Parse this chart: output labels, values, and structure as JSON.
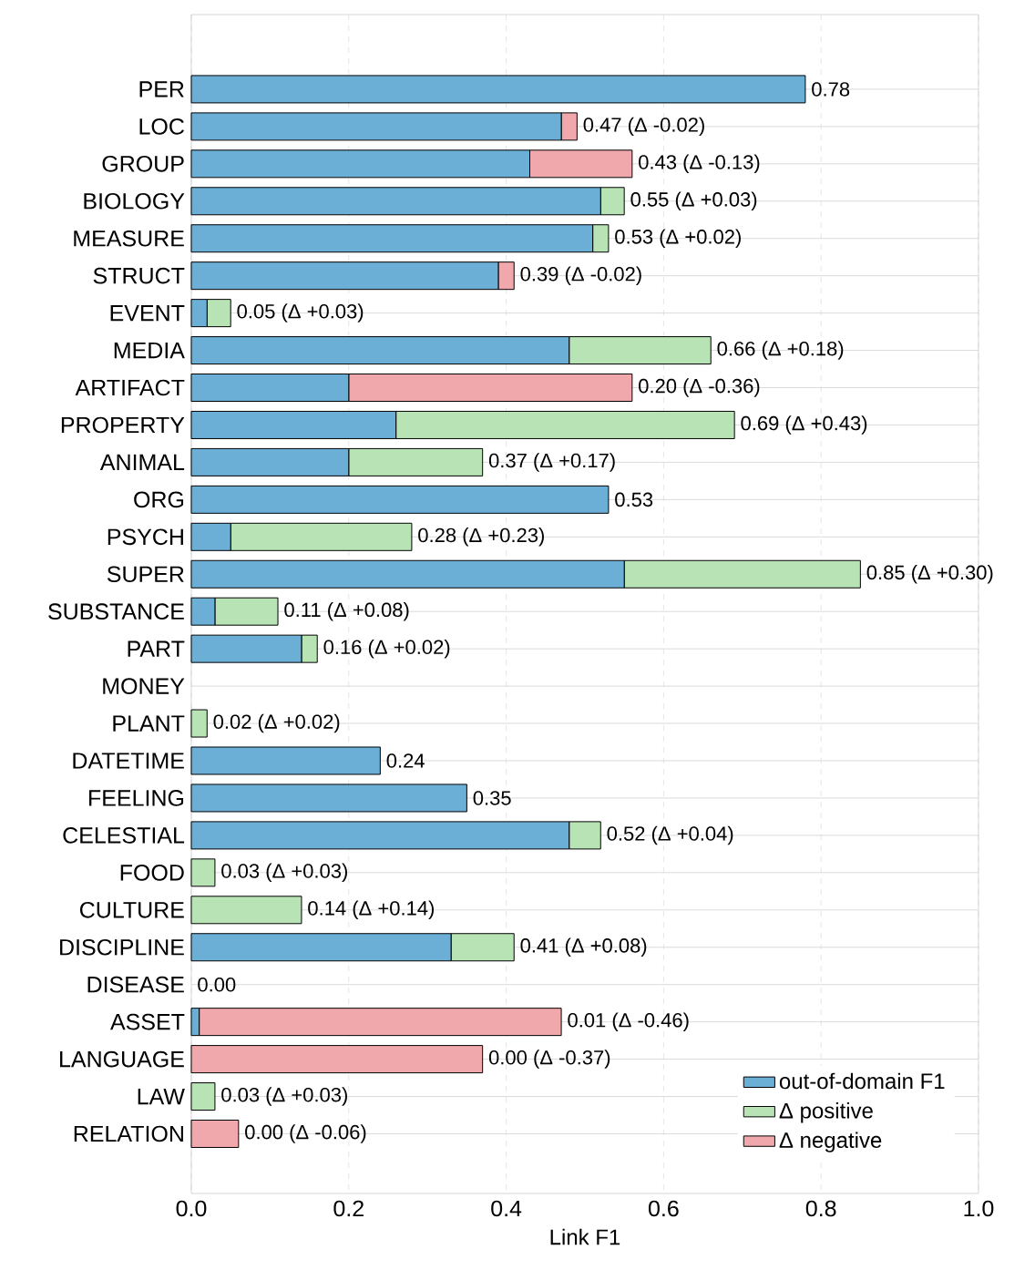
{
  "chart_data": {
    "type": "bar",
    "orientation": "horizontal",
    "stacked": true,
    "xlabel": "Link F1",
    "categories": [
      "PER",
      "LOC",
      "GROUP",
      "BIOLOGY",
      "MEASURE",
      "STRUCT",
      "EVENT",
      "MEDIA",
      "ARTIFACT",
      "PROPERTY",
      "ANIMAL",
      "ORG",
      "PSYCH",
      "SUPER",
      "SUBSTANCE",
      "PART",
      "MONEY",
      "PLANT",
      "DATETIME",
      "FEELING",
      "CELESTIAL",
      "FOOD",
      "CULTURE",
      "DISCIPLINE",
      "DISEASE",
      "ASSET",
      "LANGUAGE",
      "LAW",
      "RELATION"
    ],
    "series": [
      {
        "name": "out-of-domain F1",
        "color": "#6baed6",
        "values": [
          0.78,
          0.47,
          0.43,
          0.52,
          0.51,
          0.39,
          0.02,
          0.48,
          0.2,
          0.26,
          0.2,
          0.53,
          0.05,
          0.55,
          0.03,
          0.14,
          0,
          0,
          0.24,
          0.35,
          0.48,
          0,
          0,
          0.33,
          0,
          0.01,
          0,
          0,
          0
        ]
      },
      {
        "name": "Δ positive",
        "color": "#b8e3b5",
        "values": [
          0,
          0,
          0,
          0.03,
          0.02,
          0,
          0.03,
          0.18,
          0,
          0.43,
          0.17,
          0,
          0.23,
          0.3,
          0.08,
          0.02,
          0,
          0.02,
          0,
          0,
          0.04,
          0.03,
          0.14,
          0.08,
          0,
          0,
          0,
          0.03,
          0
        ]
      },
      {
        "name": "Δ negative",
        "color": "#f0a8ac",
        "values": [
          0,
          0.02,
          0.13,
          0,
          0,
          0.02,
          0,
          0,
          0.36,
          0,
          0,
          0,
          0,
          0,
          0,
          0,
          0,
          0,
          0,
          0,
          0,
          0,
          0,
          0,
          0,
          0.46,
          0.37,
          0,
          0.06
        ]
      }
    ],
    "annotations": [
      {
        "text": "0.78",
        "x": 0.78,
        "y": "PER"
      },
      {
        "text": "0.47 (Δ -0.02)",
        "x": 0.49,
        "y": "LOC"
      },
      {
        "text": "0.43 (Δ -0.13)",
        "x": 0.56,
        "y": "GROUP"
      },
      {
        "text": "0.55 (Δ +0.03)",
        "x": 0.55,
        "y": "BIOLOGY"
      },
      {
        "text": "0.53 (Δ +0.02)",
        "x": 0.53,
        "y": "MEASURE"
      },
      {
        "text": "0.39 (Δ -0.02)",
        "x": 0.41,
        "y": "STRUCT"
      },
      {
        "text": "0.05 (Δ +0.03)",
        "x": 0.05,
        "y": "EVENT"
      },
      {
        "text": "0.66 (Δ +0.18)",
        "x": 0.66,
        "y": "MEDIA"
      },
      {
        "text": "0.20 (Δ -0.36)",
        "x": 0.56,
        "y": "ARTIFACT"
      },
      {
        "text": "0.69 (Δ +0.43)",
        "x": 0.69,
        "y": "PROPERTY"
      },
      {
        "text": "0.37 (Δ +0.17)",
        "x": 0.37,
        "y": "ANIMAL"
      },
      {
        "text": "0.53",
        "x": 0.53,
        "y": "ORG"
      },
      {
        "text": "0.28 (Δ +0.23)",
        "x": 0.28,
        "y": "PSYCH"
      },
      {
        "text": "0.85 (Δ +0.30)",
        "x": 0.85,
        "y": "SUPER"
      },
      {
        "text": "0.11 (Δ +0.08)",
        "x": 0.11,
        "y": "SUBSTANCE"
      },
      {
        "text": "0.16 (Δ +0.02)",
        "x": 0.16,
        "y": "PART"
      },
      {
        "text": "0.02 (Δ +0.02)",
        "x": 0.02,
        "y": "PLANT"
      },
      {
        "text": "0.24",
        "x": 0.24,
        "y": "DATETIME"
      },
      {
        "text": "0.35",
        "x": 0.35,
        "y": "FEELING"
      },
      {
        "text": "0.52 (Δ +0.04)",
        "x": 0.52,
        "y": "CELESTIAL"
      },
      {
        "text": "0.03 (Δ +0.03)",
        "x": 0.03,
        "y": "FOOD"
      },
      {
        "text": "0.14 (Δ +0.14)",
        "x": 0.14,
        "y": "CULTURE"
      },
      {
        "text": "0.41 (Δ +0.08)",
        "x": 0.41,
        "y": "DISCIPLINE"
      },
      {
        "text": "0.00",
        "x": 0,
        "y": "DISEASE"
      },
      {
        "text": "0.01 (Δ -0.46)",
        "x": 0.47,
        "y": "ASSET"
      },
      {
        "text": "0.00 (Δ -0.37)",
        "x": 0.37,
        "y": "LANGUAGE"
      },
      {
        "text": "0.03 (Δ +0.03)",
        "x": 0.03,
        "y": "LAW"
      },
      {
        "text": "0.00 (Δ -0.06)",
        "x": 0.06,
        "y": "RELATION"
      }
    ],
    "xlim": [
      0,
      1.0
    ],
    "xticks": [
      {
        "value": 0,
        "label": "0.0"
      },
      {
        "value": 0.2,
        "label": "0.2"
      },
      {
        "value": 0.4,
        "label": "0.4"
      },
      {
        "value": 0.6,
        "label": "0.6"
      },
      {
        "value": 0.8,
        "label": "0.8"
      },
      {
        "value": 1.0,
        "label": "1.0"
      }
    ],
    "grid": true,
    "legend": "bottom right"
  }
}
